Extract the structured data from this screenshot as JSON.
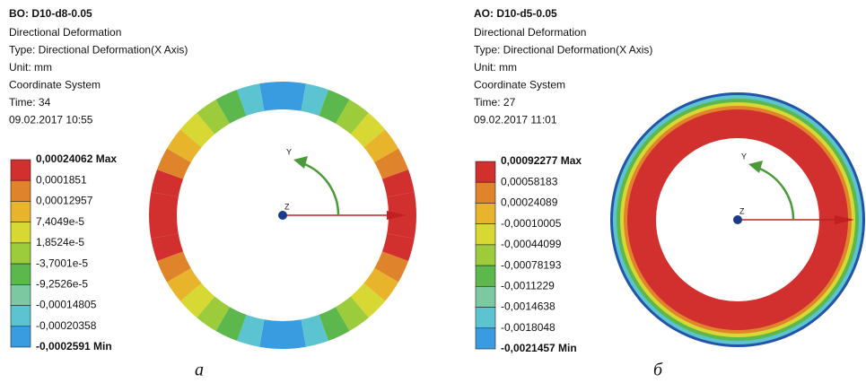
{
  "panels": [
    {
      "title": "BO: D10-d8-0.05",
      "lines": [
        "Directional Deformation",
        "Type: Directional Deformation(X Axis)",
        "Unit: mm",
        "Coordinate System",
        "Time: 34",
        "09.02.2017 10:55"
      ],
      "legend": [
        "0,00024062 Max",
        "0,0001851",
        "0,00012957",
        "7,4049e-5",
        "1,8524e-5",
        "-3,7001e-5",
        "-9,2526e-5",
        "-0,00014805",
        "-0,00020358",
        "-0,0002591 Min"
      ],
      "triad": [
        "Y",
        "Z"
      ],
      "caption": "а"
    },
    {
      "title": "AO: D10-d5-0.05",
      "lines": [
        "Directional Deformation",
        "Type: Directional Deformation(X Axis)",
        "Unit: mm",
        "Coordinate System",
        "Time: 27",
        "09.02.2017 11:01"
      ],
      "legend": [
        "0,00092277 Max",
        "0,00058183",
        "0,00024089",
        "-0,00010005",
        "-0,00044099",
        "-0,00078193",
        "-0,0011229",
        "-0,0014638",
        "-0,0018048",
        "-0,0021457 Min"
      ],
      "triad": [
        "Y",
        "Z"
      ],
      "caption": "б"
    }
  ]
}
